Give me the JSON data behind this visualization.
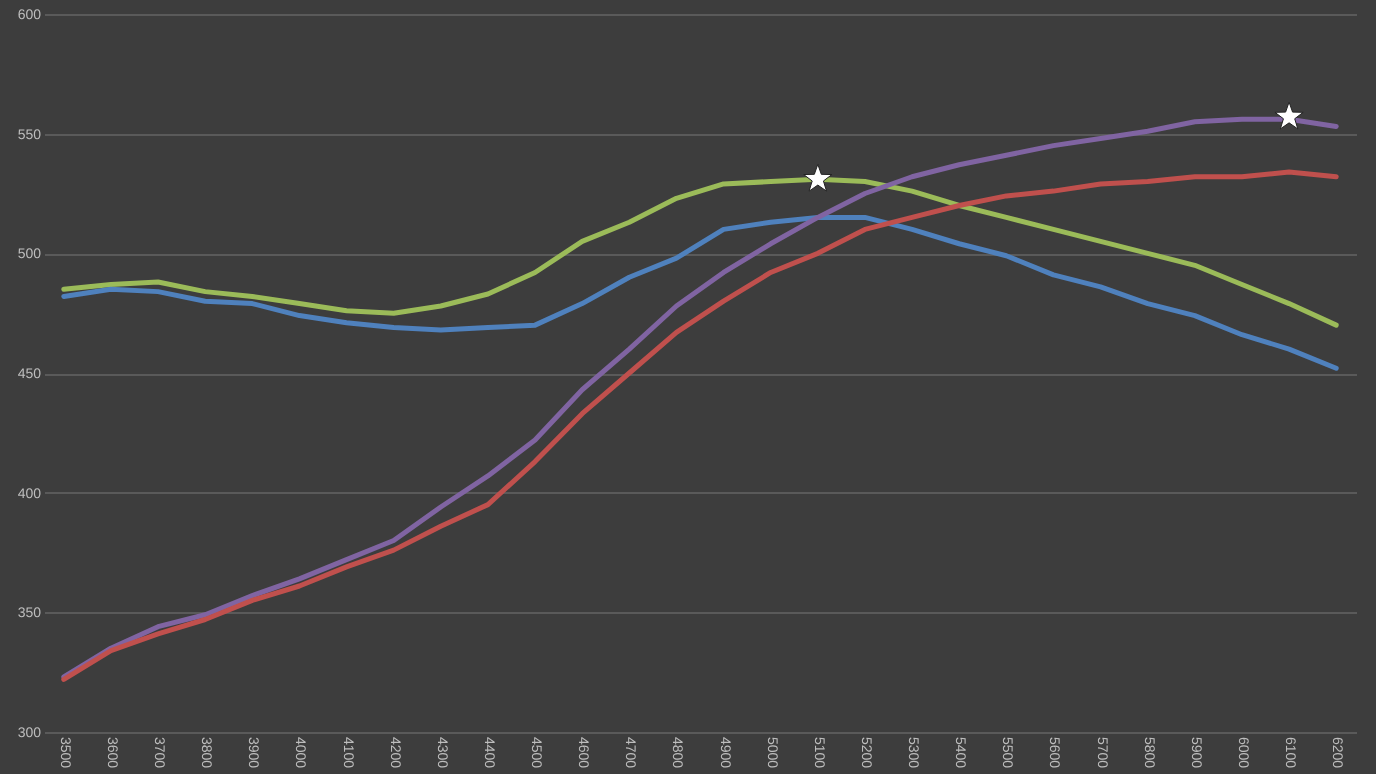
{
  "chart_data": {
    "type": "line",
    "categories": [
      "3500",
      "3600",
      "3700",
      "3800",
      "3900",
      "4000",
      "4100",
      "4200",
      "4300",
      "4400",
      "4500",
      "4600",
      "4700",
      "4800",
      "4900",
      "5000",
      "5100",
      "5200",
      "5300",
      "5400",
      "5500",
      "5600",
      "5700",
      "5800",
      "5900",
      "6000",
      "6100",
      "6200"
    ],
    "series": [
      {
        "color": "#9bbb59",
        "values": [
          485,
          487,
          488,
          484,
          482,
          479,
          476,
          475,
          478,
          483,
          492,
          505,
          513,
          523,
          529,
          530,
          531,
          530,
          526,
          520,
          515,
          510,
          505,
          500,
          495,
          487,
          479,
          470
        ]
      },
      {
        "color": "#4f81bd",
        "values": [
          482,
          485,
          484,
          480,
          479,
          474,
          471,
          469,
          468,
          469,
          470,
          479,
          490,
          498,
          510,
          513,
          515,
          515,
          510,
          504,
          499,
          491,
          486,
          479,
          474,
          466,
          460,
          452
        ]
      },
      {
        "color": "#8064a2",
        "values": [
          323,
          335,
          344,
          349,
          357,
          364,
          372,
          380,
          394,
          407,
          422,
          443,
          460,
          478,
          492,
          504,
          515,
          525,
          532,
          537,
          541,
          545,
          548,
          551,
          555,
          556,
          556,
          553
        ]
      },
      {
        "color": "#c0504d",
        "values": [
          322,
          334,
          341,
          347,
          355,
          361,
          369,
          376,
          386,
          395,
          413,
          433,
          450,
          467,
          480,
          492,
          500,
          510,
          515,
          520,
          524,
          526,
          529,
          530,
          532,
          532,
          534,
          532
        ]
      },
      {
        "type": "scatter",
        "marker": "star",
        "color": "#ffffff",
        "values": [
          null,
          null,
          null,
          null,
          null,
          null,
          null,
          null,
          null,
          null,
          null,
          null,
          null,
          null,
          null,
          null,
          531,
          null,
          null,
          null,
          null,
          null,
          null,
          null,
          null,
          null,
          557,
          null
        ]
      }
    ],
    "ylim": [
      300,
      600
    ],
    "yticks": [
      300,
      350,
      400,
      450,
      500,
      550,
      600
    ],
    "grid": "y"
  }
}
